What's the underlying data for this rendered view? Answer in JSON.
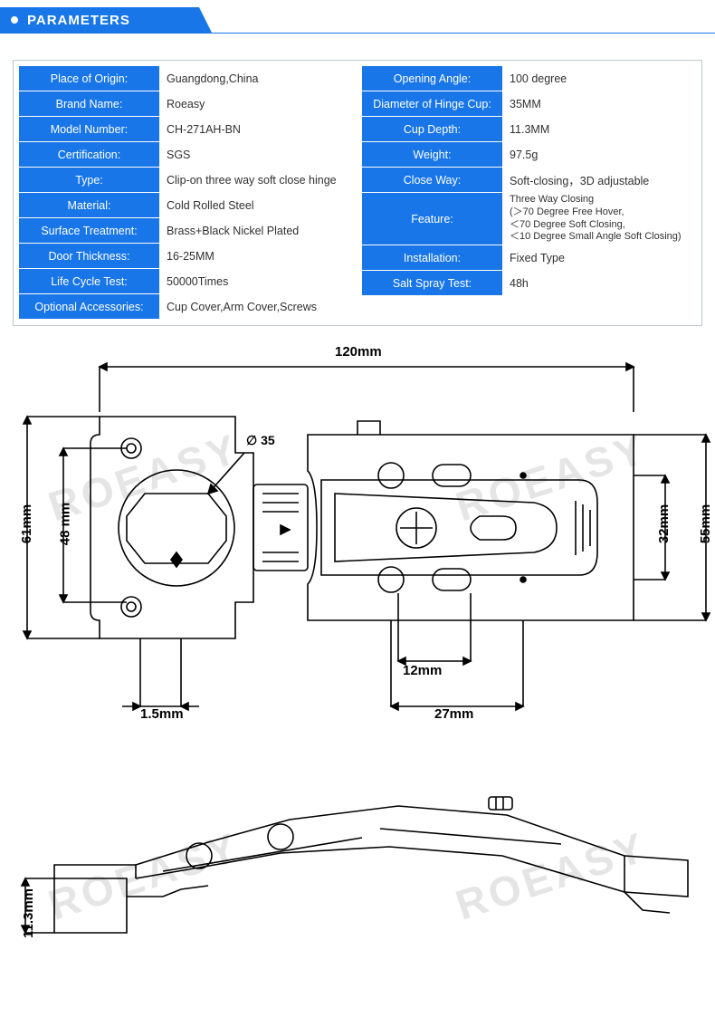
{
  "header": {
    "title": "PARAMETERS"
  },
  "colors": {
    "brand_blue": "#1876e8",
    "border_gray": "#bfc7cc",
    "text": "#303030",
    "watermark": "#e5e5e5",
    "line": "#000000"
  },
  "specs_left": [
    {
      "label": "Place of Origin:",
      "value": "Guangdong,China"
    },
    {
      "label": "Brand Name:",
      "value": "Roeasy"
    },
    {
      "label": "Model Number:",
      "value": "CH-271AH-BN"
    },
    {
      "label": "Certification:",
      "value": "SGS"
    },
    {
      "label": "Type:",
      "value": "Clip-on three way soft close hinge"
    },
    {
      "label": "Material:",
      "value": "Cold Rolled Steel"
    },
    {
      "label": "Surface Treatment:",
      "value": "Brass+Black Nickel Plated"
    },
    {
      "label": "Door Thickness:",
      "value": "16-25MM"
    },
    {
      "label": "Life Cycle Test:",
      "value": "50000Times"
    },
    {
      "label": "Optional Accessories:",
      "value": "Cup Cover,Arm Cover,Screws"
    }
  ],
  "specs_right": [
    {
      "label": "Opening Angle:",
      "value": "100 degree"
    },
    {
      "label": "Diameter of Hinge Cup:",
      "value": "35MM"
    },
    {
      "label": "Cup Depth:",
      "value": "11.3MM"
    },
    {
      "label": "Weight:",
      "value": "97.5g"
    },
    {
      "label": "Close Way:",
      "value": "Soft-closing，3D adjustable"
    },
    {
      "label": "Feature:",
      "value": "Three Way Closing\n(＞70 Degree Free Hover,\n＜70 Degree Soft Closing,\n＜10 Degree Small Angle Soft Closing)",
      "tall": true
    },
    {
      "label": "Installation:",
      "value": "Fixed Type"
    },
    {
      "label": "Salt Spray Test:",
      "value": "48h"
    }
  ],
  "diagram": {
    "watermark_text": "ROEASY",
    "dimensions": {
      "total_width": "120mm",
      "cup_outer": "61mm",
      "cup_screw_span": "48 mm",
      "plate_hole_span_v": "32mm",
      "plate_height": "55mm",
      "cup_dia": "∅ 35",
      "slot_len": "12mm",
      "plate_inner_w": "27mm",
      "offset": "1.5mm",
      "cup_depth": "11.3mm"
    },
    "line_width": 1.6,
    "drawing_color": "#000000"
  }
}
